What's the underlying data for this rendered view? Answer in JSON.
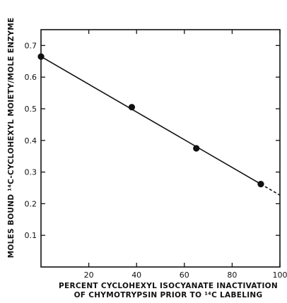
{
  "chart_data": {
    "type": "scatter",
    "title": "",
    "xlabel_line1": "PERCENT CYCLOHEXYL ISOCYANATE INACTIVATION",
    "xlabel_line2": "OF CHYMOTRYPSIN PRIOR TO ¹⁴C LABELING",
    "ylabel": "MOLES BOUND ¹⁴C-CYCLOHEXYL MOIETY/MOLE ENZYME",
    "xlim": [
      0,
      100
    ],
    "ylim": [
      0,
      0.75
    ],
    "xticks": [
      20,
      40,
      60,
      80,
      100
    ],
    "yticks": [
      0.1,
      0.2,
      0.3,
      0.4,
      0.5,
      0.6,
      0.7
    ],
    "ytick_labels": [
      "0.1",
      "0.2",
      "0.3",
      "0.4",
      "0.5",
      "0.6",
      "0.7"
    ],
    "grid": false,
    "series": [
      {
        "x": [
          0,
          38,
          65,
          92
        ],
        "y": [
          0.665,
          0.505,
          0.375,
          0.262
        ]
      }
    ],
    "fit_line": {
      "solid": {
        "x": [
          0,
          92
        ],
        "y": [
          0.665,
          0.262
        ]
      },
      "dashed": {
        "x": [
          92,
          100
        ],
        "y": [
          0.262,
          0.227
        ]
      }
    }
  }
}
